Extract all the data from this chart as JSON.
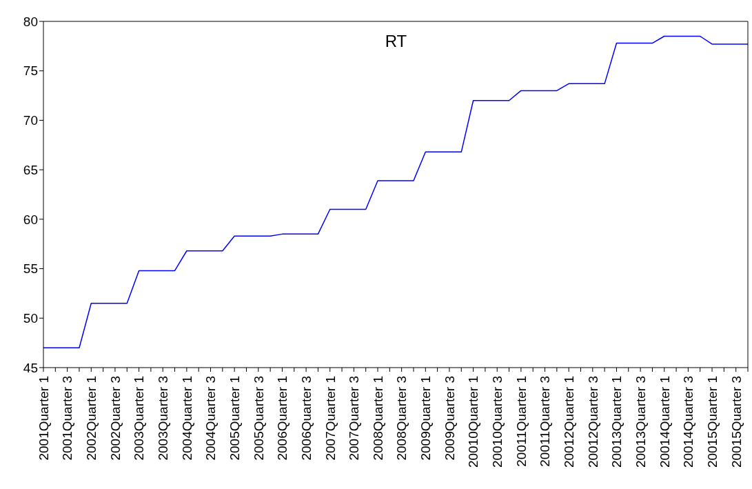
{
  "chart_data": {
    "type": "line",
    "title": "RT",
    "categories": [
      "2001Quarter 1",
      null,
      "2001Quarter 3",
      null,
      "2002Quarter 1",
      null,
      "2002Quarter 3",
      null,
      "2003Quarter 1",
      null,
      "2003Quarter 3",
      null,
      "2004Quarter 1",
      null,
      "2004Quarter 3",
      null,
      "2005Quarter 1",
      null,
      "2005Quarter 3",
      null,
      "2006Quarter 1",
      null,
      "2006Quarter 3",
      null,
      "2007Quarter 1",
      null,
      "2007Quarter 3",
      null,
      "2008Quarter 1",
      null,
      "2008Quarter 3",
      null,
      "2009Quarter 1",
      null,
      "2009Quarter 3",
      null,
      "20010Quarter 1",
      null,
      "20010Quarter 3",
      null,
      "20011Quarter 1",
      null,
      "20011Quarter 3",
      null,
      "20012Quarter 1",
      null,
      "20012Quarter 3",
      null,
      "20013Quarter 1",
      null,
      "20013Quarter 3",
      null,
      "20014Quarter 1",
      null,
      "20014Quarter 3",
      null,
      "20015Quarter 1",
      null,
      "20015Quarter 3",
      null
    ],
    "series": [
      {
        "color": "#0000ff",
        "values": [
          47.0,
          47.0,
          47.0,
          47.0,
          51.5,
          51.5,
          51.5,
          51.5,
          54.8,
          54.8,
          54.8,
          54.8,
          56.8,
          56.8,
          56.8,
          56.8,
          58.3,
          58.3,
          58.3,
          58.3,
          58.5,
          58.5,
          58.5,
          58.5,
          61.0,
          61.0,
          61.0,
          61.0,
          63.9,
          63.9,
          63.9,
          63.9,
          66.8,
          66.8,
          66.8,
          66.8,
          72.0,
          72.0,
          72.0,
          72.0,
          73.0,
          73.0,
          73.0,
          73.0,
          73.7,
          73.7,
          73.7,
          73.7,
          77.8,
          77.8,
          77.8,
          77.8,
          78.5,
          78.5,
          78.5,
          78.5,
          77.7,
          77.7,
          77.7,
          77.7
        ]
      }
    ],
    "ylim": [
      45,
      80
    ],
    "yticks": [
      45,
      50,
      55,
      60,
      65,
      70,
      75,
      80
    ]
  }
}
